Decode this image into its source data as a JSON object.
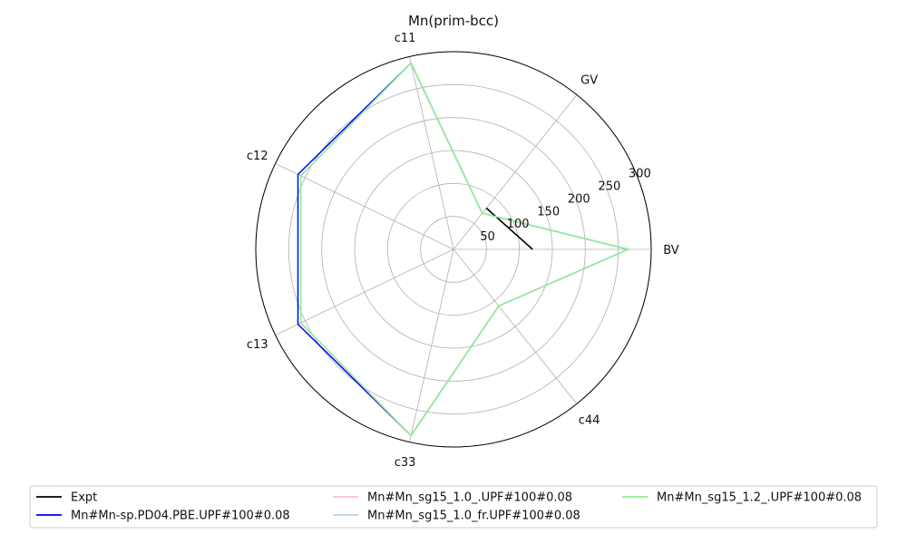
{
  "chart_data": {
    "type": "radar",
    "title": "Mn(prim-bcc)",
    "axes": [
      "BV",
      "GV",
      "c11",
      "c12",
      "c13",
      "c33",
      "c44"
    ],
    "radial_ticks": [
      50,
      100,
      150,
      200,
      250,
      300
    ],
    "rlim": [
      0,
      300
    ],
    "grid": true,
    "legend_position": "bottom",
    "series": [
      {
        "name": "Expt",
        "color": "#000000",
        "values": [
          120,
          80,
          null,
          null,
          null,
          null,
          null
        ]
      },
      {
        "name": "Mn#Mn-sp.PD04.PBE.UPF#100#0.08",
        "color": "#0000ff",
        "values": [
          265,
          70,
          290,
          262,
          262,
          290,
          110
        ]
      },
      {
        "name": "Mn#Mn_sg15_1.0_.UPF#100#0.08",
        "color": "#ffc0cb",
        "values": [
          265,
          70,
          290,
          257,
          257,
          290,
          110
        ]
      },
      {
        "name": "Mn#Mn_sg15_1.0_fr.UPF#100#0.08",
        "color": "#add8e6",
        "values": [
          265,
          70,
          290,
          257,
          257,
          290,
          110
        ]
      },
      {
        "name": "Mn#Mn_sg15_1.2_.UPF#100#0.08",
        "color": "#90ee90",
        "values": [
          265,
          70,
          290,
          257,
          257,
          290,
          110
        ]
      }
    ]
  }
}
